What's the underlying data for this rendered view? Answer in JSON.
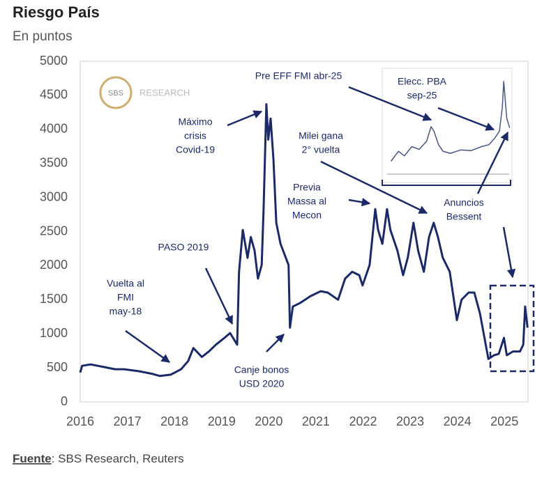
{
  "chart_data": [
    {
      "type": "line",
      "title": "Riesgo País",
      "subtitle": "En puntos",
      "color": "#1b2a66",
      "x": [
        2016.0,
        2016.04,
        2016.22,
        2016.52,
        2016.74,
        2016.93,
        2017.25,
        2017.54,
        2017.69,
        2017.92,
        2018.14,
        2018.29,
        2018.4,
        2018.58,
        2018.73,
        2018.88,
        2019.06,
        2019.18,
        2019.33,
        2019.37,
        2019.45,
        2019.55,
        2019.62,
        2019.7,
        2019.77,
        2019.85,
        2019.89,
        2019.95,
        2019.99,
        2020.04,
        2020.1,
        2020.16,
        2020.25,
        2020.36,
        2020.42,
        2020.45,
        2020.51,
        2020.66,
        2020.88,
        2021.1,
        2021.25,
        2021.47,
        2021.62,
        2021.77,
        2021.92,
        2021.99,
        2022.14,
        2022.26,
        2022.32,
        2022.41,
        2022.51,
        2022.58,
        2022.73,
        2022.85,
        2022.95,
        2023.07,
        2023.17,
        2023.29,
        2023.4,
        2023.5,
        2023.59,
        2023.69,
        2023.84,
        2023.99,
        2024.09,
        2024.24,
        2024.36,
        2024.48,
        2024.59,
        2024.66,
        2024.78,
        2024.88,
        2024.99,
        2025.05,
        2025.18,
        2025.33,
        2025.4,
        2025.44,
        2025.49
      ],
      "values": [
        430,
        530,
        550,
        510,
        480,
        480,
        450,
        410,
        380,
        400,
        480,
        600,
        790,
        660,
        740,
        840,
        940,
        1010,
        840,
        1910,
        2525,
        2115,
        2420,
        2220,
        1810,
        2010,
        2830,
        4370,
        3850,
        4160,
        3550,
        2630,
        2320,
        2120,
        2010,
        1090,
        1400,
        1450,
        1550,
        1625,
        1605,
        1500,
        1810,
        1910,
        1860,
        1710,
        2010,
        2830,
        2525,
        2320,
        2830,
        2525,
        2220,
        1860,
        2120,
        2630,
        2220,
        1910,
        2420,
        2630,
        2420,
        2120,
        1910,
        1200,
        1500,
        1605,
        1605,
        1300,
        890,
        630,
        685,
        705,
        940,
        685,
        740,
        740,
        840,
        1400,
        1090
      ],
      "xlim": [
        2016,
        2025.5
      ],
      "ylim": [
        0,
        5000
      ],
      "xticks": [
        2016,
        2017,
        2018,
        2019,
        2020,
        2021,
        2022,
        2023,
        2024,
        2025
      ],
      "yticks": [
        0,
        500,
        1000,
        1500,
        2000,
        2500,
        3000,
        3500,
        4000,
        4500,
        5000
      ],
      "grid": false,
      "annotations": [
        {
          "lines": [
            "Vuelta al",
            "FMI",
            "may-18"
          ]
        },
        {
          "lines": [
            "PASO 2019"
          ]
        },
        {
          "lines": [
            "Máximo",
            "crisis",
            "Covid-19"
          ]
        },
        {
          "lines": [
            "Canje bonos",
            "USD 2020"
          ]
        },
        {
          "lines": [
            "Pre EFF FMI abr-25"
          ]
        },
        {
          "lines": [
            "Elecc. PBA",
            "sep-25"
          ]
        },
        {
          "lines": [
            "Milei gana",
            "2° vuelta"
          ]
        },
        {
          "lines": [
            "Previa",
            "Massa al",
            "Mecon"
          ]
        },
        {
          "lines": [
            "Anuncios",
            "Bessent"
          ]
        }
      ]
    },
    {
      "type": "line",
      "color": "#4a5584",
      "x": [
        2024.9,
        2024.95,
        2024.99,
        2025.04,
        2025.09,
        2025.14,
        2025.17,
        2025.19,
        2025.22,
        2025.25,
        2025.3,
        2025.37,
        2025.44,
        2025.51,
        2025.56,
        2025.6,
        2025.63,
        2025.65,
        2025.66,
        2025.68,
        2025.7
      ],
      "values": [
        618,
        736,
        681,
        791,
        759,
        854,
        1026,
        971,
        814,
        736,
        712,
        751,
        744,
        791,
        814,
        893,
        971,
        1246,
        1561,
        1129,
        1011
      ],
      "xlim": [
        2024.85,
        2025.72
      ],
      "ylim": [
        400,
        1700
      ]
    }
  ],
  "logo": {
    "mark": "SBS",
    "text": "RESEARCH"
  },
  "source": {
    "label": "Fuente",
    "text": ": SBS Research, Reuters"
  }
}
